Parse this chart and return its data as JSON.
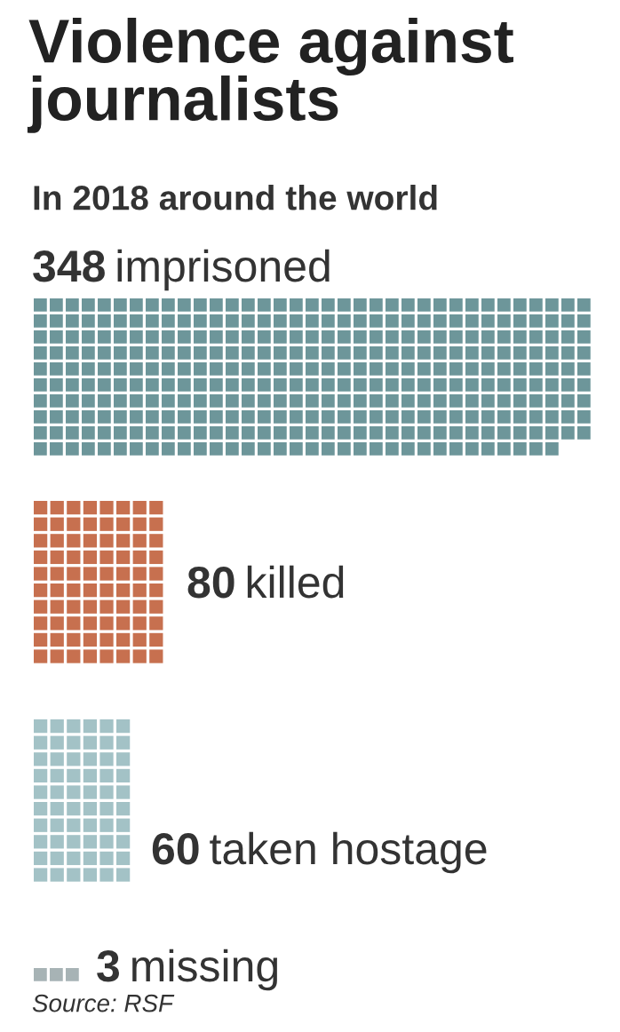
{
  "chart_data": {
    "type": "other",
    "title": "Violence against\njournalists",
    "subtitle": "In 2018 around the world",
    "categories": [
      "imprisoned",
      "killed",
      "taken hostage",
      "missing"
    ],
    "values": [
      348,
      80,
      60,
      3
    ],
    "colors": [
      "#6d969a",
      "#c7704f",
      "#a3c2c6",
      "#a7b3b5"
    ],
    "data_labels": true,
    "annotations": [
      "Source: RSF"
    ]
  }
}
